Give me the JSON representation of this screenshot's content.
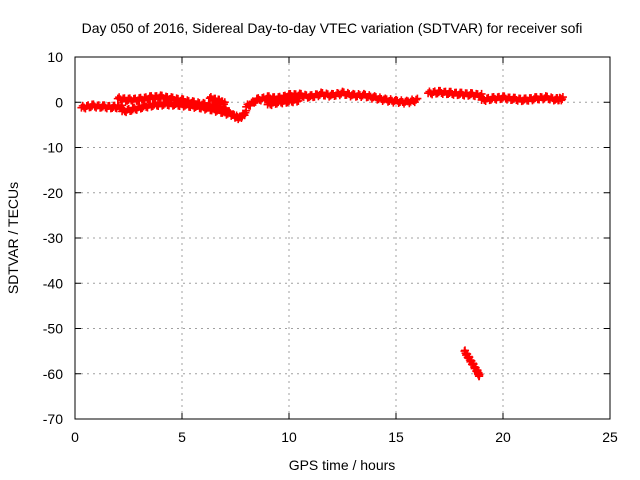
{
  "chart_data": {
    "type": "scatter",
    "title": "Day 050 of 2016, Sidereal Day-to-day VTEC variation (SDTVAR) for receiver sofi",
    "xlabel": "GPS time / hours",
    "ylabel": "SDTVAR / TECUs",
    "xlim": [
      0,
      25
    ],
    "ylim": [
      -70,
      10
    ],
    "xticks": [
      0,
      5,
      10,
      15,
      20,
      25
    ],
    "yticks": [
      -70,
      -60,
      -50,
      -40,
      -30,
      -20,
      -10,
      0,
      10
    ],
    "grid": true,
    "marker": "+",
    "series_color": "#ff0000",
    "series": [
      {
        "name": "SDTVAR",
        "segments": [
          {
            "x": [
              0.3,
              0.8,
              1.3,
              1.8,
              2.2
            ],
            "y": [
              -1.2,
              -0.8,
              -1.0,
              -1.1,
              -1.0
            ]
          },
          {
            "x": [
              2.0,
              2.5,
              3.0,
              3.5,
              4.0,
              4.5,
              5.0,
              5.5,
              6.0,
              6.5,
              7.0,
              7.4,
              7.7,
              8.0
            ],
            "y": [
              0.8,
              0.5,
              0.6,
              1.0,
              1.2,
              0.8,
              0.4,
              -0.1,
              -0.5,
              -0.9,
              -1.6,
              -3.0,
              -3.5,
              -2.2
            ]
          },
          {
            "x": [
              2.2,
              2.7,
              3.2,
              3.7,
              4.2,
              4.7,
              5.2,
              5.7,
              6.2,
              6.7,
              7.2
            ],
            "y": [
              -2.0,
              -1.6,
              -1.0,
              -0.6,
              -0.4,
              -0.5,
              -0.7,
              -1.0,
              -1.4,
              -1.9,
              -2.6
            ]
          },
          {
            "x": [
              6.3,
              6.7,
              7.0
            ],
            "y": [
              0.9,
              0.3,
              -0.3
            ]
          },
          {
            "x": [
              8.0,
              8.5,
              9.0,
              9.5,
              10.0,
              10.5,
              11.0,
              11.5,
              12.0,
              12.5,
              13.0,
              13.5,
              14.0,
              14.5,
              15.0,
              15.5,
              16.0
            ],
            "y": [
              -1.0,
              0.5,
              1.0,
              0.8,
              1.5,
              1.6,
              1.2,
              1.8,
              1.5,
              2.0,
              1.5,
              1.5,
              1.0,
              0.5,
              0.2,
              0.0,
              0.5
            ]
          },
          {
            "x": [
              9.0,
              9.5,
              10.0,
              10.5
            ],
            "y": [
              -0.5,
              0.0,
              0.2,
              0.5
            ]
          },
          {
            "x": [
              16.5,
              17.0,
              17.5,
              18.0,
              18.5,
              19.0
            ],
            "y": [
              2.0,
              2.2,
              2.0,
              1.8,
              1.7,
              1.5
            ]
          },
          {
            "x": [
              19.0,
              19.5,
              20.0,
              20.5,
              21.0,
              21.5,
              22.0,
              22.5,
              22.8
            ],
            "y": [
              0.5,
              0.8,
              1.0,
              0.7,
              0.5,
              0.8,
              1.0,
              0.6,
              0.8
            ]
          },
          {
            "x": [
              18.2,
              18.4,
              18.6,
              18.8,
              18.9
            ],
            "y": [
              -55.0,
              -56.5,
              -58.0,
              -59.5,
              -60.5
            ]
          }
        ]
      }
    ]
  }
}
